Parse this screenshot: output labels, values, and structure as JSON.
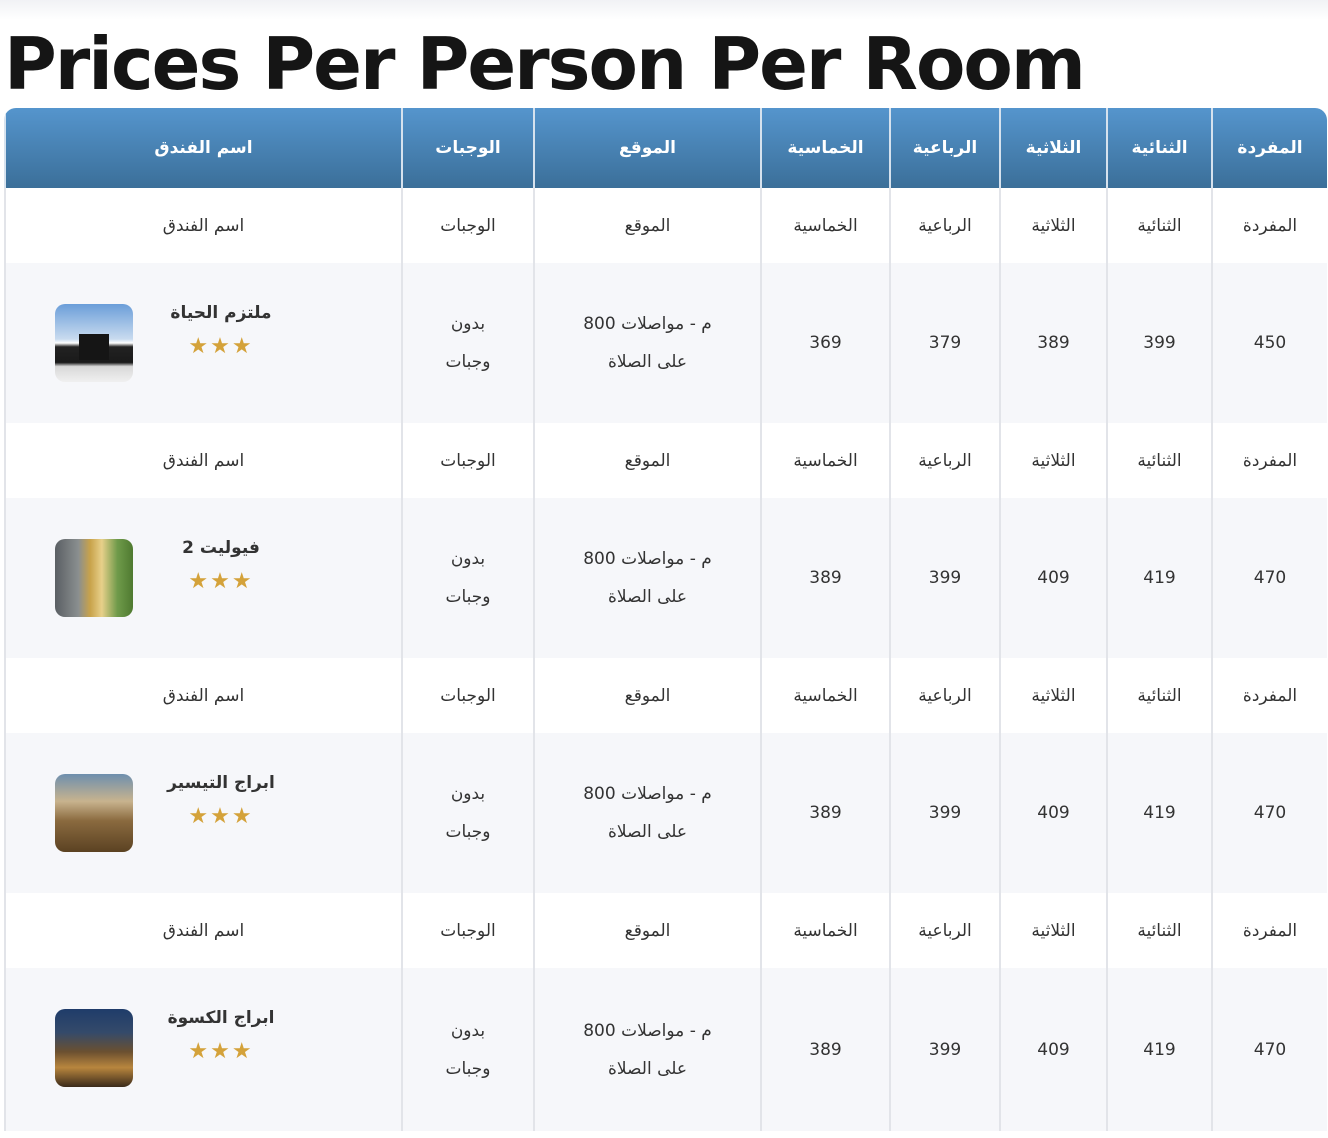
{
  "page_title": "Prices Per Person Per Room",
  "headers": {
    "single": "المفردة",
    "double": "الثنائية",
    "triple": "الثلاثية",
    "quad": "الرباعية",
    "quint": "الخماسية",
    "location": "الموقع",
    "meals": "الوجبات",
    "hotel": "اسم الفندق"
  },
  "rows": [
    {
      "hotel_name": "ملتزم الحياة",
      "stars": "★★★",
      "image": "kaaba-photo",
      "single": "450",
      "double": "399",
      "triple": "389",
      "quad": "379",
      "quint": "369",
      "location_line1": "م - مواصلات 800",
      "location_line2": "على الصلاة",
      "meals_line1": "بدون",
      "meals_line2": "وجبات"
    },
    {
      "hotel_name": "فيوليت 2",
      "stars": "★★★",
      "image": "hotel-entrance-photo",
      "single": "470",
      "double": "419",
      "triple": "409",
      "quad": "399",
      "quint": "389",
      "location_line1": "م - مواصلات 800",
      "location_line2": "على الصلاة",
      "meals_line1": "بدون",
      "meals_line2": "وجبات"
    },
    {
      "hotel_name": "ابراج التيسير",
      "stars": "★★★",
      "image": "towers-photo",
      "single": "470",
      "double": "419",
      "triple": "409",
      "quad": "399",
      "quint": "389",
      "location_line1": "م - مواصلات 800",
      "location_line2": "على الصلاة",
      "meals_line1": "بدون",
      "meals_line2": "وجبات"
    },
    {
      "hotel_name": "ابراج الكسوة",
      "stars": "★★★",
      "image": "night-tower-photo",
      "single": "470",
      "double": "419",
      "triple": "409",
      "quad": "399",
      "quint": "389",
      "location_line1": "م - مواصلات 800",
      "location_line2": "على الصلاة",
      "meals_line1": "بدون",
      "meals_line2": "وجبات"
    }
  ],
  "colors": {
    "header_gradient_top": "#5595cd",
    "header_gradient_bottom": "#3b6f99",
    "star": "#d4a23a",
    "row_alt": "#f6f7fa"
  }
}
